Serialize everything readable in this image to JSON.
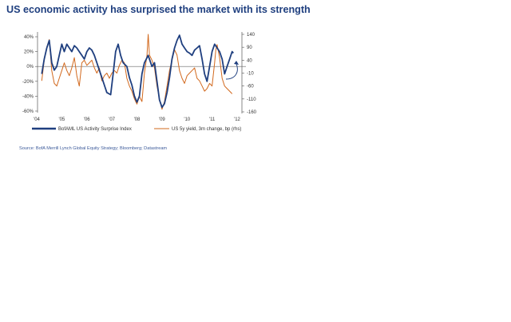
{
  "chart_data": {
    "type": "line",
    "title": "US economic activity has surprised the market with its strength",
    "source": "Source: BofA Merrill Lynch Global Equity Strategy; Bloomberg; Datastream",
    "x_ticks": [
      "'04",
      "'05",
      "'06",
      "'07",
      "'08",
      "'09",
      "'10",
      "'11",
      "'12"
    ],
    "xlim": [
      2004,
      2012
    ],
    "y_left": {
      "ticks": [
        "40%",
        "20%",
        "0%",
        "-20%",
        "-40%",
        "-60%"
      ],
      "tick_values": [
        40,
        20,
        0,
        -20,
        -40,
        -60
      ],
      "ylim": [
        -60,
        40
      ]
    },
    "y_right": {
      "ticks": [
        "140",
        "90",
        "40",
        "-10",
        "-60",
        "-110",
        "-160"
      ],
      "tick_values": [
        140,
        90,
        40,
        -10,
        -60,
        -110,
        -160
      ],
      "ylim": [
        -160,
        140
      ]
    },
    "grid": false,
    "legend_placement": "bottom",
    "annotation": "arrow indicating recent upturn",
    "series": [
      {
        "name": "BofAML US Activity Surprise Index",
        "axis": "left",
        "color": "#1f3f7f",
        "x": [
          2004.2,
          2004.3,
          2004.4,
          2004.5,
          2004.6,
          2004.7,
          2004.8,
          2004.9,
          2005.0,
          2005.1,
          2005.2,
          2005.3,
          2005.4,
          2005.5,
          2005.6,
          2005.7,
          2005.8,
          2005.9,
          2006.0,
          2006.1,
          2006.2,
          2006.3,
          2006.4,
          2006.5,
          2006.6,
          2006.7,
          2006.8,
          2006.95,
          2007.05,
          2007.15,
          2007.25,
          2007.35,
          2007.45,
          2007.6,
          2007.7,
          2007.8,
          2007.9,
          2008.0,
          2008.1,
          2008.2,
          2008.3,
          2008.45,
          2008.6,
          2008.7,
          2008.8,
          2008.9,
          2009.0,
          2009.1,
          2009.2,
          2009.3,
          2009.4,
          2009.5,
          2009.6,
          2009.7,
          2009.8,
          2009.9,
          2010.0,
          2010.1,
          2010.2,
          2010.3,
          2010.4,
          2010.5,
          2010.6,
          2010.7,
          2010.8,
          2010.9,
          2011.0,
          2011.1,
          2011.2,
          2011.3,
          2011.4,
          2011.5,
          2011.6,
          2011.7,
          2011.8,
          2011.85
        ],
        "values": [
          -10,
          10,
          25,
          35,
          5,
          -5,
          0,
          15,
          30,
          20,
          30,
          25,
          20,
          28,
          25,
          20,
          15,
          10,
          20,
          25,
          22,
          15,
          5,
          -5,
          -15,
          -25,
          -35,
          -38,
          -10,
          20,
          30,
          15,
          5,
          0,
          -15,
          -25,
          -40,
          -48,
          -40,
          -10,
          5,
          15,
          0,
          5,
          -20,
          -45,
          -55,
          -50,
          -35,
          -15,
          10,
          25,
          35,
          42,
          30,
          25,
          20,
          18,
          15,
          22,
          25,
          28,
          10,
          -10,
          -20,
          0,
          20,
          30,
          25,
          20,
          10,
          -10,
          0,
          10,
          20,
          18
        ]
      },
      {
        "name": "US 5y yield, 3m change, bp (rhs)",
        "axis": "right",
        "color": "#d2691e",
        "x": [
          2004.2,
          2004.3,
          2004.4,
          2004.5,
          2004.55,
          2004.6,
          2004.7,
          2004.8,
          2004.9,
          2005.0,
          2005.1,
          2005.2,
          2005.3,
          2005.4,
          2005.5,
          2005.6,
          2005.7,
          2005.8,
          2005.9,
          2006.0,
          2006.1,
          2006.2,
          2006.3,
          2006.4,
          2006.5,
          2006.6,
          2006.7,
          2006.8,
          2006.9,
          2007.0,
          2007.1,
          2007.2,
          2007.3,
          2007.4,
          2007.5,
          2007.6,
          2007.7,
          2007.8,
          2007.9,
          2008.0,
          2008.1,
          2008.2,
          2008.3,
          2008.4,
          2008.45,
          2008.5,
          2008.6,
          2008.7,
          2008.8,
          2008.9,
          2009.0,
          2009.1,
          2009.2,
          2009.3,
          2009.4,
          2009.5,
          2009.6,
          2009.7,
          2009.8,
          2009.9,
          2010.0,
          2010.1,
          2010.2,
          2010.3,
          2010.4,
          2010.5,
          2010.6,
          2010.7,
          2010.8,
          2010.9,
          2011.0,
          2011.1,
          2011.15,
          2011.2,
          2011.3,
          2011.4,
          2011.5,
          2011.6,
          2011.7,
          2011.8
        ],
        "values": [
          -40,
          40,
          90,
          120,
          60,
          0,
          -50,
          -60,
          -30,
          0,
          30,
          0,
          -20,
          10,
          50,
          -20,
          -60,
          30,
          40,
          20,
          30,
          40,
          10,
          -10,
          10,
          -40,
          -20,
          -10,
          -30,
          -10,
          0,
          -10,
          20,
          40,
          30,
          -30,
          -60,
          -80,
          -110,
          -130,
          -100,
          -120,
          -10,
          60,
          140,
          60,
          40,
          10,
          -60,
          -110,
          -150,
          -120,
          -60,
          0,
          40,
          80,
          60,
          0,
          -30,
          -50,
          -20,
          -10,
          0,
          10,
          -30,
          -40,
          -60,
          -80,
          -70,
          -50,
          -60,
          30,
          80,
          100,
          50,
          -30,
          -60,
          -70,
          -80,
          -90
        ]
      }
    ]
  }
}
